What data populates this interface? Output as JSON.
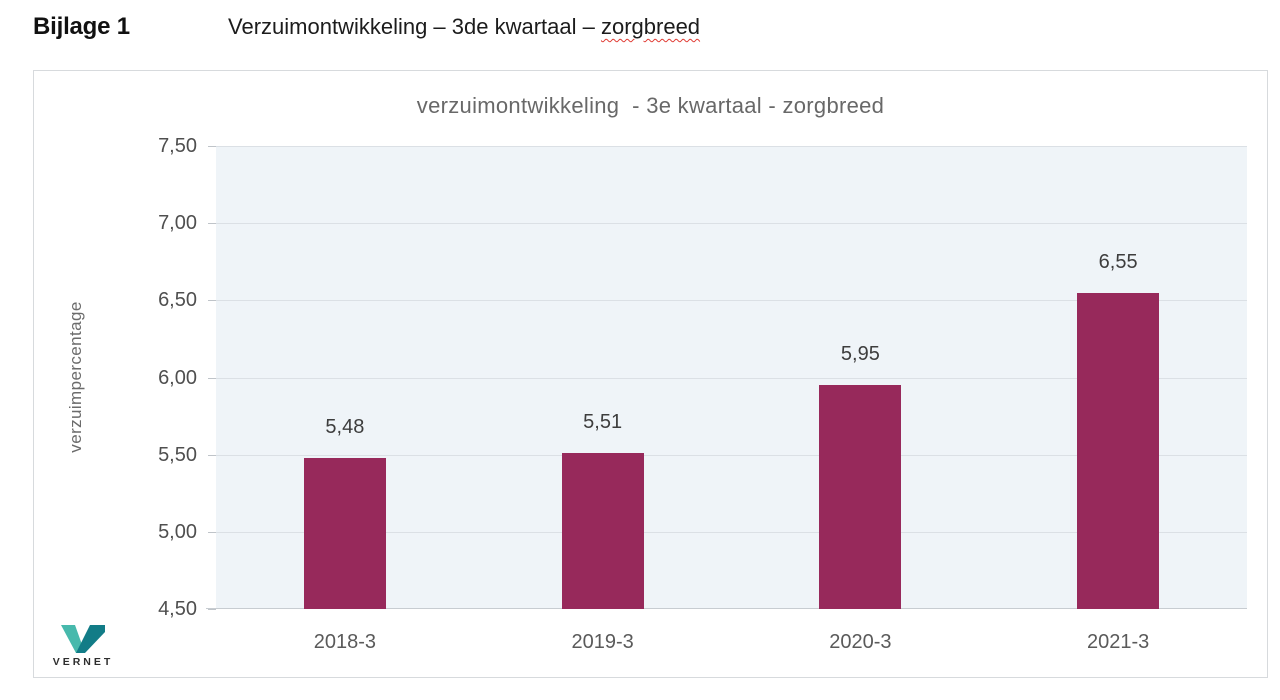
{
  "header": {
    "label": "Bijlage 1",
    "title_prefix": "Verzuimontwikkeling – 3de kwartaal – ",
    "title_flagged_word": "zorgbreed"
  },
  "chart_data": {
    "type": "bar",
    "title": "verzuimontwikkeling  - 3e kwartaal - zorgbreed",
    "xlabel": "",
    "ylabel": "verzuimpercentage",
    "categories": [
      "2018-3",
      "2019-3",
      "2020-3",
      "2021-3"
    ],
    "values": [
      5.48,
      5.51,
      5.95,
      6.55
    ],
    "value_labels": [
      "5,48",
      "5,51",
      "5,95",
      "6,55"
    ],
    "ylim": [
      4.5,
      7.5
    ],
    "ytick_values": [
      7.5,
      7.0,
      6.5,
      6.0,
      5.5,
      5.0,
      4.5
    ],
    "ytick_labels": [
      "7,50",
      "7,00",
      "6,50",
      "6,00",
      "5,50",
      "5,00",
      "4,50"
    ],
    "grid": true,
    "legend": false,
    "decimal_separator": ",",
    "bar_color": "#97295B",
    "plot_background": "#EFF4F8"
  },
  "logo": {
    "text": "VERNET",
    "color_light": "#47B9AC",
    "color_dark": "#127C87"
  }
}
